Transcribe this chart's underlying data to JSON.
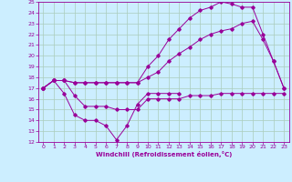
{
  "xlabel": "Windchill (Refroidissement éolien,°C)",
  "bg_color": "#cceeff",
  "line_color": "#990099",
  "grid_color": "#aaccbb",
  "xlim": [
    -0.5,
    23.5
  ],
  "ylim": [
    12,
    25
  ],
  "yticks": [
    12,
    13,
    14,
    15,
    16,
    17,
    18,
    19,
    20,
    21,
    22,
    23,
    24,
    25
  ],
  "xticks": [
    0,
    1,
    2,
    3,
    4,
    5,
    6,
    7,
    8,
    9,
    10,
    11,
    12,
    13,
    14,
    15,
    16,
    17,
    18,
    19,
    20,
    21,
    22,
    23
  ],
  "line1_x": [
    0,
    1,
    2,
    3,
    4,
    5,
    6,
    7,
    8,
    9,
    10,
    11,
    12,
    13,
    14,
    15,
    16,
    17,
    18,
    19,
    20,
    21,
    22,
    23
  ],
  "line1_y": [
    17.0,
    17.7,
    17.7,
    16.3,
    15.3,
    15.3,
    15.3,
    15.0,
    15.0,
    15.0,
    16.0,
    16.0,
    16.0,
    16.0,
    16.3,
    16.3,
    16.3,
    16.5,
    16.5,
    16.5,
    16.5,
    16.5,
    16.5,
    16.5
  ],
  "line2_x": [
    0,
    1,
    2,
    3,
    4,
    5,
    6,
    7,
    8,
    9,
    10,
    11,
    12,
    13,
    14,
    15,
    16,
    17,
    18,
    19,
    20,
    21,
    22,
    23
  ],
  "line2_y": [
    17.0,
    17.7,
    17.7,
    17.5,
    17.5,
    17.5,
    17.5,
    17.5,
    17.5,
    17.5,
    18.0,
    18.5,
    19.5,
    20.2,
    20.8,
    21.5,
    22.0,
    22.3,
    22.5,
    23.0,
    23.2,
    21.5,
    19.5,
    17.0
  ],
  "line3_x": [
    0,
    1,
    2,
    3,
    4,
    5,
    6,
    7,
    8,
    9,
    10,
    11,
    12,
    13,
    14,
    15,
    16,
    17,
    18,
    19,
    20,
    21,
    22,
    23
  ],
  "line3_y": [
    17.0,
    17.7,
    17.7,
    17.5,
    17.5,
    17.5,
    17.5,
    17.5,
    17.5,
    17.5,
    19.0,
    20.0,
    21.5,
    22.5,
    23.5,
    24.2,
    24.5,
    25.0,
    24.8,
    24.5,
    24.5,
    22.0,
    19.5,
    17.0
  ],
  "line4_x": [
    0,
    1,
    2,
    3,
    4,
    5,
    6,
    7,
    8,
    9,
    10,
    11,
    12,
    13
  ],
  "line4_y": [
    17.0,
    17.7,
    16.5,
    14.5,
    14.0,
    14.0,
    13.5,
    12.2,
    13.5,
    15.5,
    16.5,
    16.5,
    16.5,
    16.5
  ]
}
